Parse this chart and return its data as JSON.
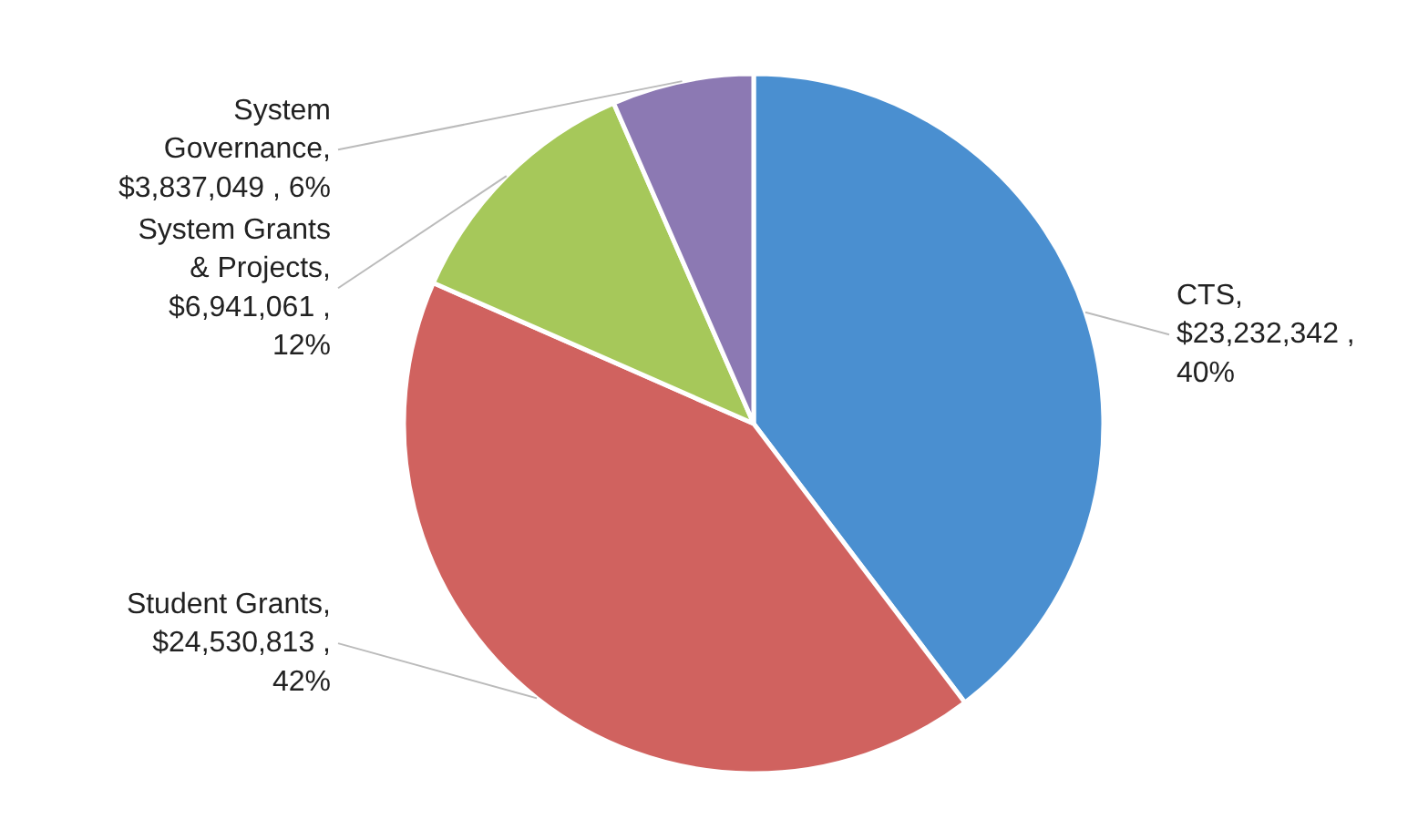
{
  "chart_data": {
    "type": "pie",
    "categories": [
      "CTS",
      "Student Grants",
      "System Grants\n& Projects",
      "System\nGovernance"
    ],
    "values": [
      23232342,
      24530813,
      6941061,
      3837049
    ],
    "colors": [
      "#4a8fd0",
      "#d0625f",
      "#a6c85a",
      "#8c79b3"
    ],
    "value_labels": [
      ",\n$23,232,342 ,\n40%",
      ",\n$24,530,813 ,\n42%",
      ",\n$6,941,061 ,\n12%",
      ",\n$3,837,049 , 6%"
    ]
  }
}
